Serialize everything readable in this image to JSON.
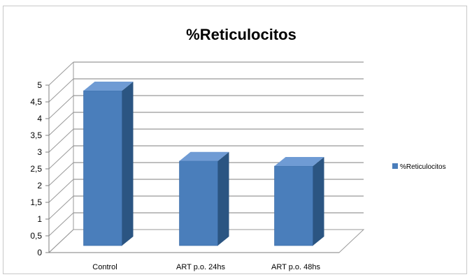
{
  "chart_data": {
    "type": "bar",
    "title": "%Reticulocitos",
    "categories": [
      "Control",
      "ART p.o. 24hs",
      "ART p.o. 48hs"
    ],
    "series": [
      {
        "name": "%Reticulocitos",
        "values": [
          4.75,
          2.65,
          2.5
        ],
        "color": "#4a7ebb"
      }
    ],
    "ylim": [
      0,
      5
    ],
    "yticks": [
      "0",
      "0,5",
      "1",
      "1,5",
      "2",
      "2,5",
      "3",
      "3,5",
      "4",
      "4,5",
      "5"
    ],
    "grid": true,
    "three_d": true,
    "legend_position": "right"
  }
}
